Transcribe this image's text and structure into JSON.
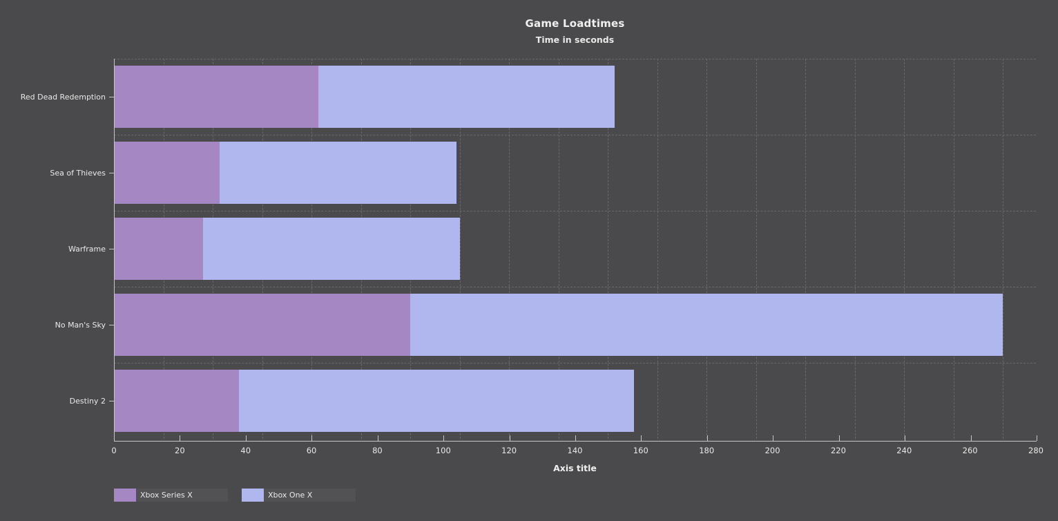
{
  "chart_data": {
    "type": "bar",
    "orientation": "horizontal",
    "stacked": true,
    "title": "Game Loadtimes",
    "subtitle": "Time in seconds",
    "xlabel": "Axis title",
    "categories": [
      "Red Dead Redemption",
      "Sea of Thieves",
      "Warframe",
      "No Man's Sky",
      "Destiny 2"
    ],
    "series": [
      {
        "name": "Xbox Series X",
        "color": "#a587c4",
        "values": [
          62,
          32,
          27,
          90,
          38
        ]
      },
      {
        "name": "Xbox One X",
        "color": "#afb7ee",
        "values": [
          90,
          72,
          78,
          180,
          120
        ]
      }
    ],
    "xlim": [
      0,
      280
    ],
    "xticks": [
      0,
      20,
      40,
      60,
      80,
      100,
      120,
      140,
      160,
      180,
      200,
      220,
      240,
      260,
      280
    ],
    "grid": "dashed",
    "x_grid_interval": 15,
    "legend_position": "bottom-left"
  },
  "colors": {
    "background": "#4a4a4c",
    "text": "#e9e9e9",
    "axis": "#c6c6c6",
    "gridline": "#69696d",
    "legend_item_bg": "#525254"
  }
}
